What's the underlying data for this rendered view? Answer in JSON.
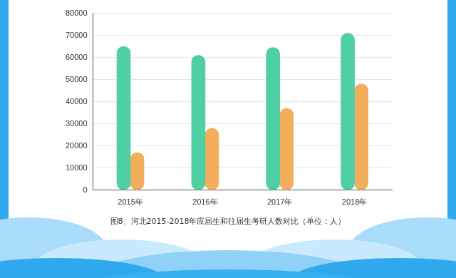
{
  "chart_data": {
    "type": "bar",
    "title": "图8、河北2015-2018年应届生和往届生考研人数对比（单位：人）",
    "categories": [
      "2015年",
      "2016年",
      "2017年",
      "2018年"
    ],
    "series": [
      {
        "color": "#4ecfa4",
        "values": [
          65000,
          61000,
          64500,
          71000
        ]
      },
      {
        "color": "#f2ae5a",
        "values": [
          17000,
          28000,
          37000,
          48000
        ]
      }
    ],
    "ylim": [
      0,
      80000
    ],
    "yticks": [
      0,
      10000,
      20000,
      30000,
      40000,
      50000,
      60000,
      70000,
      80000
    ],
    "grid": true
  }
}
